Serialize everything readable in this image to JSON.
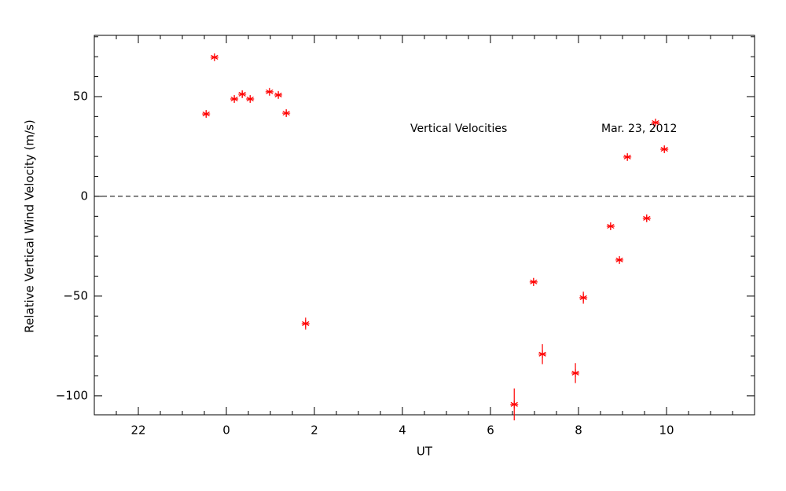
{
  "chart_data": {
    "type": "scatter",
    "xlabel": "UT",
    "ylabel": "Relative Vertical Wind Velocity (m/s)",
    "annotations": [
      "Vertical Velocities",
      "Mar. 23, 2012"
    ],
    "x": [
      -0.46,
      -0.27,
      0.18,
      0.36,
      0.54,
      0.98,
      1.18,
      1.36,
      1.8,
      6.54,
      6.98,
      7.18,
      7.93,
      8.11,
      8.73,
      8.93,
      9.11,
      9.55,
      9.75,
      9.95
    ],
    "series": [
      {
        "color": "#ff0000",
        "values": [
          41.3,
          69.7,
          48.8,
          51.2,
          48.8,
          52.4,
          50.8,
          41.7,
          -63.8,
          -104.3,
          -42.9,
          -79.1,
          -88.6,
          -50.8,
          -15,
          -31.9,
          19.7,
          -11,
          37,
          23.6
        ],
        "errors": [
          1.5,
          1.5,
          1.5,
          1.5,
          1.5,
          1.5,
          1.5,
          1.5,
          3,
          8,
          2,
          5,
          5,
          3,
          1.5,
          1.5,
          1.5,
          1.5,
          1.5,
          1.5
        ]
      }
    ],
    "xlim": [
      -3,
      12
    ],
    "ylim": [
      -109.5,
      80.7
    ],
    "xticks": [
      {
        "value": -2,
        "label": "22"
      },
      0,
      2,
      4,
      6,
      8,
      10
    ],
    "yticks": [
      {
        "value": -100,
        "label": "−100"
      },
      {
        "value": -50,
        "label": "−50"
      },
      0,
      50
    ],
    "xminorticks": [
      -2.5,
      -1.5,
      -1,
      -0.5,
      0.5,
      1,
      1.5,
      2.5,
      3,
      3.5,
      4.5,
      5,
      5.5,
      6.5,
      7,
      7.5,
      8.5,
      9,
      9.5,
      10.5,
      11,
      11.5
    ],
    "yminorticks": [
      -90,
      -80,
      -70,
      -60,
      -40,
      -30,
      -20,
      -10,
      10,
      20,
      30,
      40,
      60,
      70,
      80
    ],
    "hline": 0
  }
}
